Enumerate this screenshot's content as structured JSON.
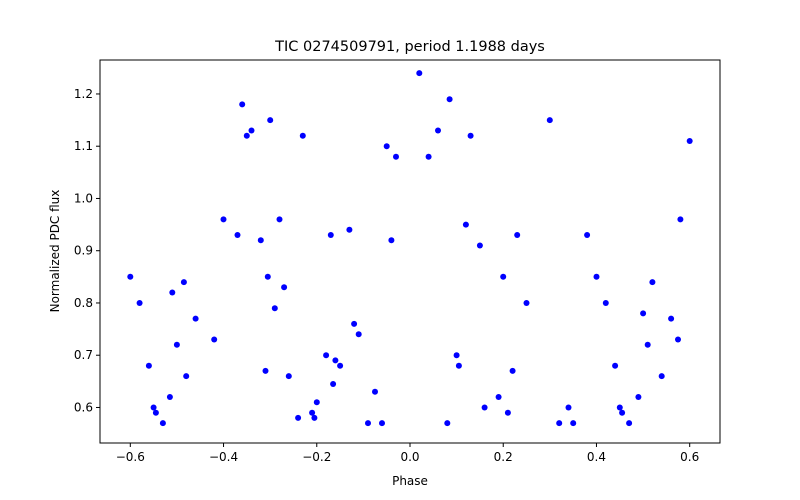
{
  "chart_data": {
    "type": "scatter",
    "title": "TIC 0274509791, period 1.1988 days",
    "xlabel": "Phase",
    "ylabel": "Normalized PDC flux",
    "xlim": [
      -0.665,
      0.665
    ],
    "ylim": [
      0.532,
      1.265
    ],
    "xticks": [
      -0.6,
      -0.4,
      -0.2,
      0.0,
      0.2,
      0.4,
      0.6
    ],
    "xtick_labels": [
      "−0.6",
      "−0.4",
      "−0.2",
      "0.0",
      "0.2",
      "0.4",
      "0.6"
    ],
    "yticks": [
      0.6,
      0.7,
      0.8,
      0.9,
      1.0,
      1.1,
      1.2
    ],
    "ytick_labels": [
      "0.6",
      "0.7",
      "0.8",
      "0.9",
      "1.0",
      "1.1",
      "1.2"
    ],
    "grid": false,
    "legend": false,
    "marker_color": "#0000ff",
    "series": [
      {
        "points": [
          [
            -0.6,
            0.85
          ],
          [
            -0.58,
            0.8
          ],
          [
            -0.56,
            0.68
          ],
          [
            -0.55,
            0.6
          ],
          [
            -0.545,
            0.59
          ],
          [
            -0.53,
            0.57
          ],
          [
            -0.515,
            0.62
          ],
          [
            -0.51,
            0.82
          ],
          [
            -0.5,
            0.72
          ],
          [
            -0.485,
            0.84
          ],
          [
            -0.48,
            0.66
          ],
          [
            -0.46,
            0.77
          ],
          [
            -0.42,
            0.73
          ],
          [
            -0.4,
            0.96
          ],
          [
            -0.37,
            0.93
          ],
          [
            -0.36,
            1.18
          ],
          [
            -0.35,
            1.12
          ],
          [
            -0.34,
            1.13
          ],
          [
            -0.32,
            0.92
          ],
          [
            -0.31,
            0.67
          ],
          [
            -0.305,
            0.85
          ],
          [
            -0.3,
            1.15
          ],
          [
            -0.29,
            0.79
          ],
          [
            -0.28,
            0.96
          ],
          [
            -0.27,
            0.83
          ],
          [
            -0.26,
            0.66
          ],
          [
            -0.24,
            0.58
          ],
          [
            -0.23,
            1.12
          ],
          [
            -0.21,
            0.59
          ],
          [
            -0.205,
            0.58
          ],
          [
            -0.2,
            0.61
          ],
          [
            -0.18,
            0.7
          ],
          [
            -0.17,
            0.93
          ],
          [
            -0.165,
            0.645
          ],
          [
            -0.16,
            0.69
          ],
          [
            -0.15,
            0.68
          ],
          [
            -0.13,
            0.94
          ],
          [
            -0.12,
            0.76
          ],
          [
            -0.11,
            0.74
          ],
          [
            -0.09,
            0.57
          ],
          [
            -0.075,
            0.63
          ],
          [
            -0.06,
            0.57
          ],
          [
            -0.05,
            1.1
          ],
          [
            -0.04,
            0.92
          ],
          [
            -0.03,
            1.08
          ],
          [
            0.02,
            1.24
          ],
          [
            0.04,
            1.08
          ],
          [
            0.06,
            1.13
          ],
          [
            0.08,
            0.57
          ],
          [
            0.085,
            1.19
          ],
          [
            0.1,
            0.7
          ],
          [
            0.105,
            0.68
          ],
          [
            0.12,
            0.95
          ],
          [
            0.13,
            1.12
          ],
          [
            0.15,
            0.91
          ],
          [
            0.16,
            0.6
          ],
          [
            0.19,
            0.62
          ],
          [
            0.2,
            0.85
          ],
          [
            0.21,
            0.59
          ],
          [
            0.22,
            0.67
          ],
          [
            0.23,
            0.93
          ],
          [
            0.25,
            0.8
          ],
          [
            0.3,
            1.15
          ],
          [
            0.32,
            0.57
          ],
          [
            0.34,
            0.6
          ],
          [
            0.35,
            0.57
          ],
          [
            0.38,
            0.93
          ],
          [
            0.4,
            0.85
          ],
          [
            0.42,
            0.8
          ],
          [
            0.44,
            0.68
          ],
          [
            0.45,
            0.6
          ],
          [
            0.455,
            0.59
          ],
          [
            0.47,
            0.57
          ],
          [
            0.49,
            0.62
          ],
          [
            0.5,
            0.78
          ],
          [
            0.51,
            0.72
          ],
          [
            0.52,
            0.84
          ],
          [
            0.54,
            0.66
          ],
          [
            0.56,
            0.77
          ],
          [
            0.575,
            0.73
          ],
          [
            0.58,
            0.96
          ],
          [
            0.6,
            1.11
          ]
        ]
      }
    ]
  }
}
